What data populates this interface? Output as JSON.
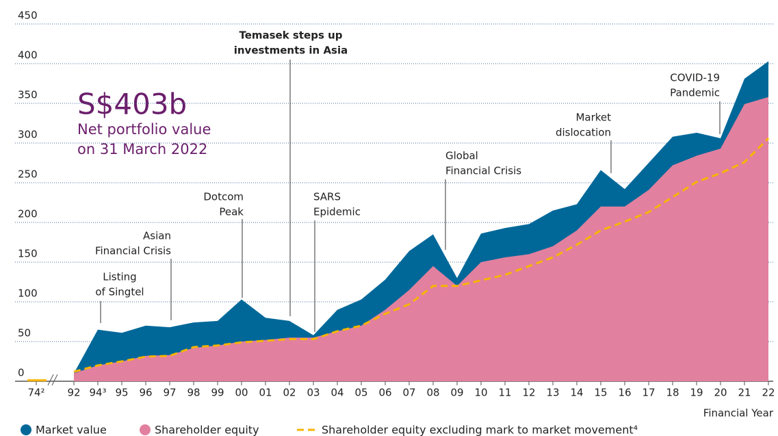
{
  "chart_data": {
    "type": "area",
    "headline": "S$403b",
    "subtitle": [
      "Net portfolio value",
      "on 31 March 2022"
    ],
    "x_label": "Financial Year",
    "categories": [
      "74²",
      "92",
      "94³",
      "95",
      "96",
      "97",
      "98",
      "99",
      "00",
      "01",
      "02",
      "03",
      "04",
      "05",
      "06",
      "07",
      "08",
      "09",
      "10",
      "11",
      "12",
      "13",
      "14",
      "15",
      "16",
      "17",
      "18",
      "19",
      "20",
      "21",
      "22"
    ],
    "series": [
      {
        "name": "Market value",
        "color": "#006899",
        "values": [
          0.35,
          10,
          65,
          61,
          70,
          68,
          74,
          76,
          103,
          80,
          76,
          58,
          90,
          103,
          128,
          164,
          185,
          130,
          186,
          193,
          198,
          215,
          223,
          266,
          242,
          275,
          308,
          313,
          306,
          381,
          403
        ]
      },
      {
        "name": "Shareholder equity",
        "color": "#e2809f",
        "values": [
          0.35,
          10,
          20,
          25,
          32,
          33,
          42,
          45,
          50,
          52,
          55,
          55,
          63,
          70,
          90,
          115,
          145,
          120,
          150,
          156,
          160,
          170,
          190,
          220,
          220,
          241,
          272,
          284,
          293,
          349,
          358
        ]
      },
      {
        "name": "Shareholder equity excluding mark to market movement⁴",
        "color": "#f7b500",
        "style": "dashed",
        "values": [
          0.35,
          12,
          20,
          25,
          31,
          32,
          43,
          45,
          49,
          51,
          53,
          53,
          63,
          70,
          85,
          97,
          120,
          120,
          127,
          134,
          145,
          156,
          172,
          190,
          201,
          213,
          232,
          251,
          262,
          276,
          306
        ]
      }
    ],
    "ylim": [
      0,
      450
    ],
    "yticks": [
      0,
      50,
      100,
      150,
      200,
      250,
      300,
      350,
      400,
      450
    ],
    "grid": true,
    "annotations": [
      {
        "text": [
          "Listing",
          "of Singtel"
        ],
        "category": "94³"
      },
      {
        "text": [
          "Asian",
          "Financial Crisis"
        ],
        "category": "97"
      },
      {
        "text": [
          "Dotcom",
          "Peak"
        ],
        "category": "00"
      },
      {
        "text": [
          "Temasek steps up",
          "investments in Asia"
        ],
        "category": "02"
      },
      {
        "text": [
          "SARS",
          "Epidemic"
        ],
        "category": "03"
      },
      {
        "text": [
          "Global",
          "Financial Crisis"
        ],
        "category": "09"
      },
      {
        "text": [
          "Market",
          "dislocation"
        ],
        "category": "16"
      },
      {
        "text": [
          "COVID-19",
          "Pandemic"
        ],
        "category": "20"
      }
    ]
  }
}
